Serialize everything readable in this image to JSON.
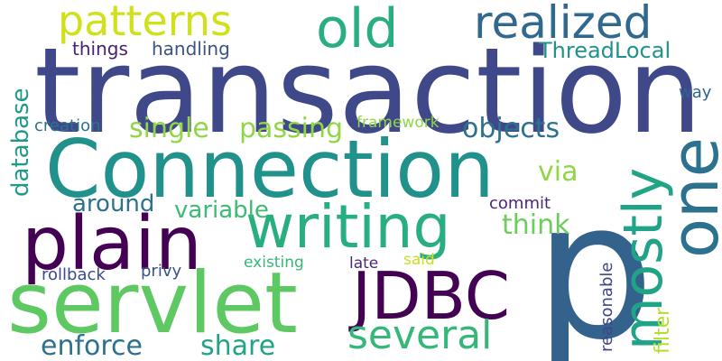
{
  "words": [
    {
      "id": "p",
      "text": "p",
      "color": "#33638d"
    },
    {
      "id": "transaction",
      "text": "transaction",
      "color": "#3f4889"
    },
    {
      "id": "connection",
      "text": "Connection",
      "color": "#21918c"
    },
    {
      "id": "servlet",
      "text": "servlet",
      "color": "#5ec962"
    },
    {
      "id": "plain",
      "text": "plain",
      "color": "#440154"
    },
    {
      "id": "writing",
      "text": "writing",
      "color": "#29af7f"
    },
    {
      "id": "jdbc",
      "text": "JDBC",
      "color": "#440154"
    },
    {
      "id": "one",
      "text": "one",
      "color": "#2c728e"
    },
    {
      "id": "mostly",
      "text": "mostly",
      "color": "#20a386"
    },
    {
      "id": "patterns",
      "text": "patterns",
      "color": "#d0e11c"
    },
    {
      "id": "old",
      "text": "old",
      "color": "#29af7f"
    },
    {
      "id": "realized",
      "text": "realized",
      "color": "#31688e"
    },
    {
      "id": "several",
      "text": "several",
      "color": "#35b779"
    },
    {
      "id": "threadlocal",
      "text": "ThreadLocal",
      "color": "#21918c"
    },
    {
      "id": "objects",
      "text": "objects",
      "color": "#2c728e"
    },
    {
      "id": "single",
      "text": "single",
      "color": "#8fd744"
    },
    {
      "id": "passing",
      "text": "passing",
      "color": "#8fd744"
    },
    {
      "id": "enforce",
      "text": "enforce",
      "color": "#2c728e"
    },
    {
      "id": "share",
      "text": "share",
      "color": "#20a386"
    },
    {
      "id": "around",
      "text": "around",
      "color": "#2c728e"
    },
    {
      "id": "variable",
      "text": "variable",
      "color": "#3bbb75"
    },
    {
      "id": "think",
      "text": "think",
      "color": "#6ccd5a"
    },
    {
      "id": "via",
      "text": "via",
      "color": "#8fd744"
    },
    {
      "id": "database",
      "text": "database",
      "color": "#1f9a8a"
    },
    {
      "id": "things",
      "text": "things",
      "color": "#482173"
    },
    {
      "id": "handling",
      "text": "handling",
      "color": "#3b528b"
    },
    {
      "id": "creation",
      "text": "creation",
      "color": "#2c728e"
    },
    {
      "id": "framework",
      "text": "framework",
      "color": "#8fd744"
    },
    {
      "id": "way",
      "text": "way",
      "color": "#33638d"
    },
    {
      "id": "commit",
      "text": "commit",
      "color": "#482878"
    },
    {
      "id": "reasonable",
      "text": "reasonable",
      "color": "#414487"
    },
    {
      "id": "filter",
      "text": "filter",
      "color": "#b5de2b"
    },
    {
      "id": "rollback",
      "text": "rollback",
      "color": "#3e4a89"
    },
    {
      "id": "privy",
      "text": "privy",
      "color": "#3b528b"
    },
    {
      "id": "existing",
      "text": "existing",
      "color": "#35b779"
    },
    {
      "id": "late",
      "text": "late",
      "color": "#482878"
    },
    {
      "id": "said",
      "text": "said",
      "color": "#c8e020"
    }
  ]
}
